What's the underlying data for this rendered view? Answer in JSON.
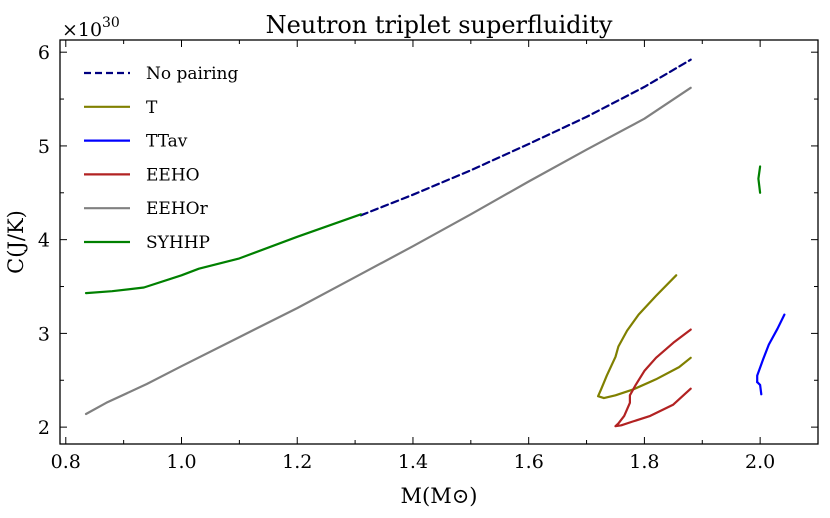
{
  "chart_data": {
    "type": "line",
    "title": "Neutron triplet superfluidity",
    "xlabel": "M(M⊙)",
    "ylabel": "C(J/K)",
    "y_multiplier": "×10",
    "y_multiplier_exponent": "30",
    "xlim": [
      0.79,
      2.1
    ],
    "ylim": [
      1.82,
      6.13
    ],
    "xticks": [
      0.8,
      1.0,
      1.2,
      1.4,
      1.6,
      1.8,
      2.0
    ],
    "xtick_labels": [
      "0.8",
      "1.0",
      "1.2",
      "1.4",
      "1.6",
      "1.8",
      "2.0"
    ],
    "yticks": [
      2,
      3,
      4,
      5,
      6
    ],
    "ytick_labels": [
      "2",
      "3",
      "4",
      "5",
      "6"
    ],
    "legend_position": "top-left",
    "series": [
      {
        "name": "No pairing",
        "color": "#000080",
        "dash": "dashed",
        "points": [
          [
            1.31,
            4.26
          ],
          [
            1.4,
            4.48
          ],
          [
            1.5,
            4.74
          ],
          [
            1.6,
            5.02
          ],
          [
            1.7,
            5.31
          ],
          [
            1.8,
            5.63
          ],
          [
            1.88,
            5.92
          ]
        ]
      },
      {
        "name": "T",
        "color": "#808000",
        "dash": "solid",
        "points": [
          [
            1.855,
            3.62
          ],
          [
            1.82,
            3.4
          ],
          [
            1.79,
            3.2
          ],
          [
            1.77,
            3.03
          ],
          [
            1.755,
            2.86
          ],
          [
            1.75,
            2.75
          ],
          [
            1.735,
            2.55
          ],
          [
            1.725,
            2.4
          ],
          [
            1.72,
            2.33
          ],
          [
            1.73,
            2.31
          ],
          [
            1.75,
            2.34
          ],
          [
            1.78,
            2.4
          ],
          [
            1.82,
            2.51
          ],
          [
            1.86,
            2.64
          ],
          [
            1.88,
            2.74
          ]
        ]
      },
      {
        "name": "TTav",
        "color": "#0000ff",
        "dash": "solid",
        "points": [
          [
            1.995,
            2.48
          ],
          [
            1.995,
            2.55
          ],
          [
            2.005,
            2.72
          ],
          [
            2.015,
            2.88
          ],
          [
            2.03,
            3.05
          ],
          [
            2.042,
            3.2
          ]
        ],
        "points_b": [
          [
            2.002,
            2.35
          ],
          [
            2.0,
            2.45
          ],
          [
            1.995,
            2.48
          ]
        ]
      },
      {
        "name": "EEHO",
        "color": "#b22222",
        "dash": "solid",
        "points": [
          [
            1.88,
            3.04
          ],
          [
            1.85,
            2.9
          ],
          [
            1.82,
            2.74
          ],
          [
            1.8,
            2.6
          ],
          [
            1.785,
            2.45
          ],
          [
            1.775,
            2.34
          ],
          [
            1.775,
            2.26
          ],
          [
            1.765,
            2.12
          ],
          [
            1.755,
            2.04
          ],
          [
            1.75,
            2.01
          ],
          [
            1.76,
            2.02
          ],
          [
            1.78,
            2.06
          ],
          [
            1.81,
            2.12
          ],
          [
            1.85,
            2.24
          ],
          [
            1.88,
            2.41
          ]
        ]
      },
      {
        "name": "EEHOr",
        "color": "#808080",
        "dash": "solid",
        "points": [
          [
            0.835,
            2.14
          ],
          [
            0.87,
            2.26
          ],
          [
            0.94,
            2.46
          ],
          [
            1.0,
            2.65
          ],
          [
            1.1,
            2.96
          ],
          [
            1.2,
            3.27
          ],
          [
            1.3,
            3.6
          ],
          [
            1.4,
            3.93
          ],
          [
            1.5,
            4.27
          ],
          [
            1.6,
            4.62
          ],
          [
            1.7,
            4.96
          ],
          [
            1.8,
            5.29
          ],
          [
            1.88,
            5.62
          ]
        ]
      },
      {
        "name": "SYHHP",
        "color": "#008000",
        "dash": "solid",
        "points": [
          [
            0.835,
            3.43
          ],
          [
            0.88,
            3.45
          ],
          [
            0.935,
            3.49
          ],
          [
            1.0,
            3.62
          ],
          [
            1.03,
            3.69
          ],
          [
            1.1,
            3.8
          ],
          [
            1.2,
            4.03
          ],
          [
            1.31,
            4.27
          ]
        ],
        "points_b": [
          [
            2.0,
            4.78
          ],
          [
            1.997,
            4.65
          ],
          [
            2.0,
            4.5
          ]
        ]
      }
    ]
  }
}
